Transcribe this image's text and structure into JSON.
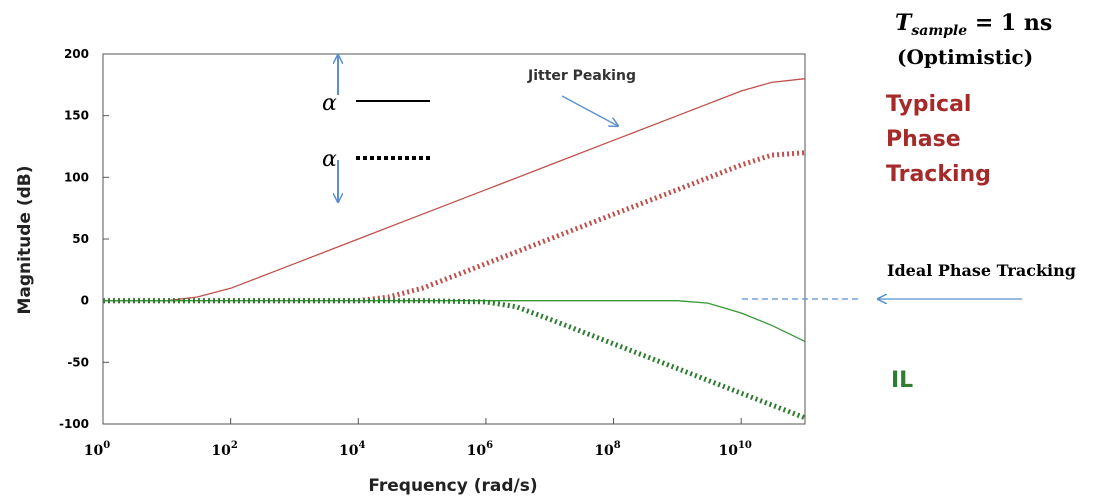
{
  "chart_data": {
    "type": "line",
    "xlabel": "Frequency (rad/s)",
    "ylabel": "Magnitude (dB)",
    "xscale": "log",
    "xlim": [
      1,
      100000000000.0
    ],
    "ylim": [
      -100,
      200
    ],
    "x_ticks": [
      {
        "value": 1,
        "base": "10",
        "exp": "0"
      },
      {
        "value": 100,
        "base": "10",
        "exp": "2"
      },
      {
        "value": 10000,
        "base": "10",
        "exp": "4"
      },
      {
        "value": 1000000,
        "base": "10",
        "exp": "6"
      },
      {
        "value": 100000000,
        "base": "10",
        "exp": "8"
      },
      {
        "value": 10000000000,
        "base": "10",
        "exp": "10"
      }
    ],
    "y_ticks": [
      "200",
      "150",
      "100",
      "50",
      "0",
      "-50",
      "-100"
    ],
    "grid": false,
    "series": [
      {
        "style": "solid",
        "color": "#c0504d",
        "x": [
          1,
          10,
          30,
          100,
          1000.0,
          10000.0,
          100000.0,
          1000000.0,
          10000000.0,
          100000000.0,
          1000000000.0,
          10000000000.0,
          30000000000.0,
          100000000000.0
        ],
        "y": [
          0,
          0,
          3,
          10,
          30,
          50,
          70,
          90,
          110,
          130,
          150,
          170,
          177,
          180
        ]
      },
      {
        "style": "dotted",
        "color": "#c0504d",
        "x": [
          1,
          1000.0,
          10000.0,
          30000.0,
          100000.0,
          1000000.0,
          10000000.0,
          100000000.0,
          1000000000.0,
          10000000000.0,
          30000000000.0,
          100000000000.0
        ],
        "y": [
          0,
          0,
          0,
          3,
          10,
          30,
          50,
          70,
          90,
          110,
          118,
          120
        ]
      },
      {
        "style": "solid",
        "color": "#339933",
        "x": [
          1,
          1000000.0,
          1000000000.0,
          3000000000.0,
          10000000000.0,
          30000000000.0,
          100000000000.0
        ],
        "y": [
          0,
          0,
          0,
          -2,
          -10,
          -20,
          -33
        ]
      },
      {
        "style": "dotted",
        "color": "#2e7d32",
        "x": [
          1,
          100000.0,
          1000000.0,
          3000000.0,
          10000000.0,
          100000000.0,
          1000000000.0,
          10000000000.0,
          100000000000.0
        ],
        "y": [
          0,
          0,
          -1,
          -5,
          -15,
          -35,
          -55,
          -75,
          -95
        ]
      }
    ],
    "legend": {
      "symbol": "α",
      "position": "top-left"
    },
    "annotations": {
      "jitter_peaking": "Jitter Peaking",
      "t_sample": {
        "symbol": "T",
        "subscript": "sample",
        "value": " = 1 ns"
      },
      "optimistic": "(Optimistic)",
      "typical": [
        "Typical",
        "Phase",
        "Tracking"
      ],
      "ideal": "Ideal Phase Tracking",
      "il": "IL"
    },
    "colors": {
      "red": "#a52a2a",
      "green": "#2e7d32",
      "arrow": "#5b8fd0"
    }
  }
}
